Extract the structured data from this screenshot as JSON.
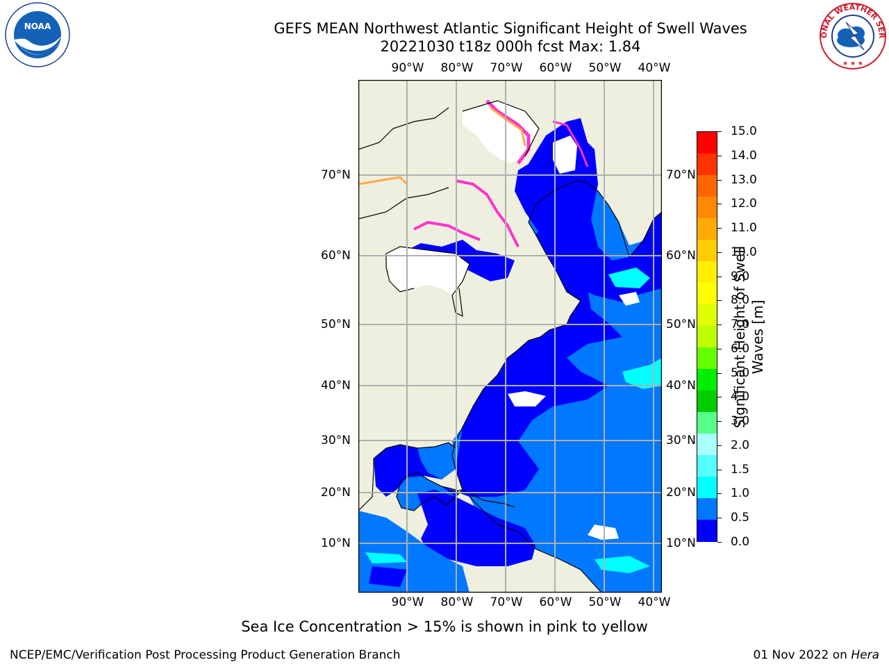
{
  "title_line1": "GEFS MEAN Northwest Atlantic Significant Height of Swell Waves",
  "title_line2": "20221030 t18z 000h fcst   Max: 1.84",
  "logos": {
    "left": "noaa-logo",
    "right": "national-weather-service-logo",
    "left_text": "NOAA",
    "right_text": "NATIONAL WEATHER SERVICE"
  },
  "map": {
    "lon_labels": [
      "90°W",
      "80°W",
      "70°W",
      "60°W",
      "50°W",
      "40°W"
    ],
    "lat_labels": [
      "70°N",
      "60°N",
      "50°N",
      "40°N",
      "30°N",
      "20°N",
      "10°N"
    ],
    "colors": {
      "land": "#efefdf",
      "ocean_low": "#0000ff",
      "ocean_mid": "#0078ff",
      "no_data": "#ffffff",
      "ice_pink": "#ff33cc",
      "ice_orange": "#ffaa44",
      "grid": "#b0b0b0"
    }
  },
  "colorbar": {
    "label": "Significant Height of Swell Waves [m]",
    "ticks": [
      "15.0",
      "14.0",
      "13.0",
      "12.0",
      "11.0",
      "10.0",
      "9.0",
      "8.0",
      "7.0",
      "6.0",
      "5.0",
      "4.0",
      "3.0",
      "2.0",
      "1.5",
      "1.0",
      "0.5",
      "0.0"
    ],
    "colors": [
      "#ff0000",
      "#ff3300",
      "#ff6600",
      "#ff8800",
      "#ffaa00",
      "#ffcc00",
      "#ffee00",
      "#ffff00",
      "#ddff00",
      "#bbff00",
      "#66ff00",
      "#00ee00",
      "#00cc00",
      "#55ff88",
      "#aaffff",
      "#55ffff",
      "#00ffff",
      "#0078ff",
      "#0000ff"
    ]
  },
  "note": "Sea Ice Concentration > 15% is shown in pink to yellow",
  "footer": {
    "left": "NCEP/EMC/Verification Post Processing Product Generation Branch",
    "right_date": "01 Nov 2022 on ",
    "right_host": "Hera"
  }
}
